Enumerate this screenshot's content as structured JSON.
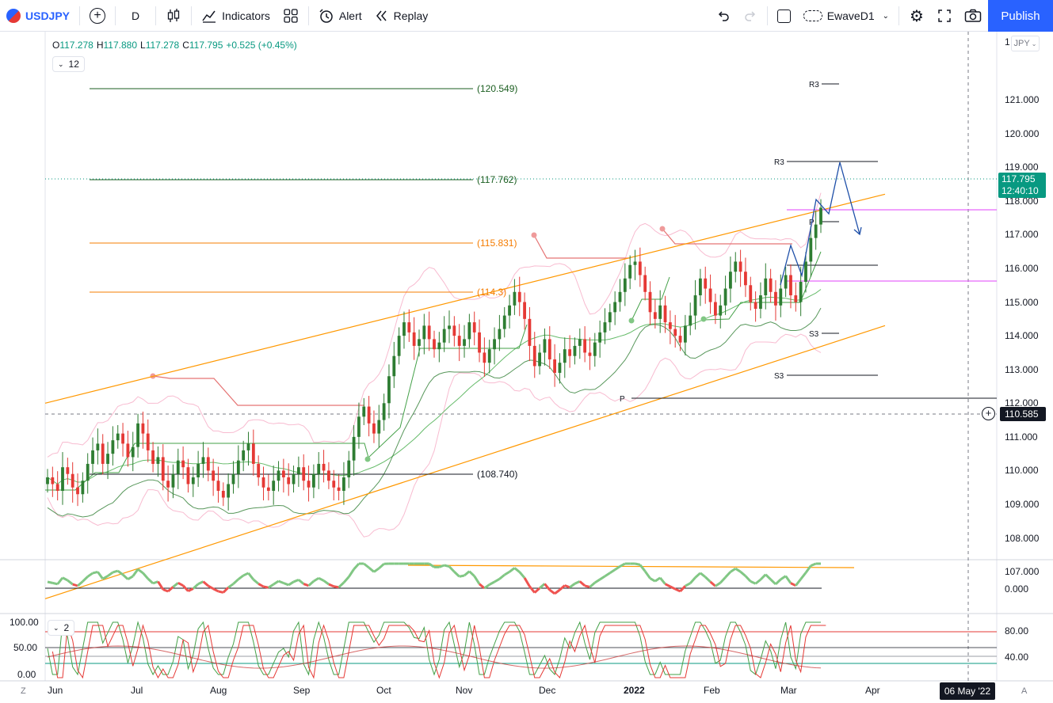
{
  "toolbar": {
    "symbol": "USDJPY",
    "interval": "D",
    "indicators_label": "Indicators",
    "alert_label": "Alert",
    "replay_label": "Replay",
    "layout_name": "EwaveD1",
    "publish_label": "Publish",
    "icons": {
      "add": "plus-circle-icon",
      "candles": "candles-icon",
      "indicators": "indicators-icon",
      "templates": "templates-grid-icon",
      "alert": "alarm-clock-icon",
      "replay": "rewind-icon",
      "undo": "undo-icon",
      "redo": "redo-icon",
      "settings": "gear-icon",
      "fullscreen": "fullscreen-icon",
      "snapshot": "camera-icon"
    }
  },
  "legend": {
    "open_k": "O",
    "open_v": "117.278",
    "high_k": "H",
    "high_v": "117.880",
    "low_k": "L",
    "low_v": "117.278",
    "close_k": "C",
    "close_v": "117.795",
    "change": "+0.525 (+0.45%)",
    "interval_count": "12"
  },
  "osc_legend": {
    "count": "2"
  },
  "price_axis": {
    "currency": "JPY",
    "top_partial": "1",
    "ticks": [
      "121.000",
      "120.000",
      "119.000",
      "118.000",
      "117.000",
      "116.000",
      "115.000",
      "114.000",
      "113.000",
      "112.000",
      "111.000",
      "110.000",
      "109.000",
      "108.000",
      "107.000"
    ],
    "last_price": "117.795",
    "countdown": "12:40:10",
    "crosshair_price": "110.585",
    "osc_zero": "0.000",
    "stoch_ticks": [
      "80.00",
      "40.00"
    ],
    "stoch_left_ticks": [
      "100.00",
      "50.00",
      "0.00"
    ]
  },
  "time_axis": {
    "labels": [
      "Jun",
      "Jul",
      "Aug",
      "Sep",
      "Oct",
      "Nov",
      "Dec",
      "2022",
      "Feb",
      "Mar",
      "Apr"
    ],
    "crosshair_date": "06 May '22",
    "left_btn": "Z",
    "right_btn": "A"
  },
  "annotations": {
    "hlines": [
      "(120.549)",
      "(117.762)",
      "(115.831)",
      "(114.3)",
      "(108.740)"
    ],
    "pivots": [
      "R3",
      "R3",
      "P",
      "P",
      "S3",
      "S3"
    ]
  },
  "colors": {
    "up": "#089981",
    "up_candle": "#2e7d32",
    "down_candle": "#e53935",
    "channel": "#ff9800",
    "accent": "#2962ff"
  },
  "chart_data": {
    "type": "candlestick",
    "symbol": "USDJPY",
    "ylim": [
      106.3,
      121.8
    ],
    "channel_upper": [
      [
        0,
        112.0
      ],
      [
        100,
        118.2
      ]
    ],
    "channel_lower": [
      [
        0,
        106.2
      ],
      [
        100,
        114.3
      ]
    ],
    "hlines": [
      {
        "label": "(120.549)",
        "value": 120.549
      },
      {
        "label": "(117.762)",
        "value": 117.762
      },
      {
        "label": "(115.831)",
        "value": 115.831
      },
      {
        "label": "(114.3)",
        "value": 114.33
      },
      {
        "label": "(108.740)",
        "value": 108.74
      }
    ],
    "closes": [
      109.8,
      109.6,
      109.4,
      110.1,
      109.9,
      109.5,
      109.3,
      109.7,
      110.2,
      110.6,
      110.8,
      110.2,
      110.5,
      110.9,
      111.1,
      110.8,
      110.4,
      110.7,
      111.4,
      111.1,
      110.6,
      110.2,
      110.4,
      109.7,
      109.5,
      109.9,
      110.3,
      110.1,
      109.6,
      109.8,
      110.2,
      110.4,
      110.0,
      109.7,
      109.4,
      109.2,
      109.6,
      109.9,
      110.3,
      110.6,
      110.8,
      110.2,
      109.8,
      109.5,
      109.4,
      109.7,
      110.0,
      109.8,
      109.6,
      109.9,
      110.1,
      109.7,
      109.5,
      109.9,
      110.2,
      110.0,
      109.7,
      109.5,
      109.4,
      109.8,
      110.3,
      111.0,
      111.6,
      111.9,
      111.4,
      111.1,
      111.5,
      112.0,
      112.8,
      113.4,
      114.0,
      114.4,
      114.1,
      113.7,
      113.9,
      114.3,
      113.9,
      113.6,
      113.8,
      114.2,
      114.3,
      114.0,
      113.7,
      113.9,
      114.4,
      114.1,
      113.5,
      113.2,
      113.6,
      113.9,
      114.2,
      114.6,
      114.9,
      115.3,
      115.0,
      114.5,
      113.7,
      113.1,
      113.5,
      113.9,
      113.3,
      112.9,
      113.2,
      113.6,
      113.4,
      113.7,
      113.9,
      113.5,
      113.4,
      113.8,
      114.1,
      114.4,
      114.7,
      115.0,
      115.3,
      115.7,
      116.1,
      116.2,
      115.8,
      115.3,
      114.7,
      114.5,
      114.9,
      114.4,
      114.2,
      114.0,
      113.8,
      114.3,
      114.6,
      115.2,
      115.7,
      115.4,
      115.0,
      114.6,
      114.9,
      115.4,
      115.9,
      116.2,
      115.9,
      115.5,
      115.0,
      114.8,
      115.2,
      115.7,
      115.3,
      114.9,
      115.4,
      115.8,
      115.2,
      115.0,
      115.6,
      116.2,
      116.9,
      117.3,
      117.8
    ]
  }
}
